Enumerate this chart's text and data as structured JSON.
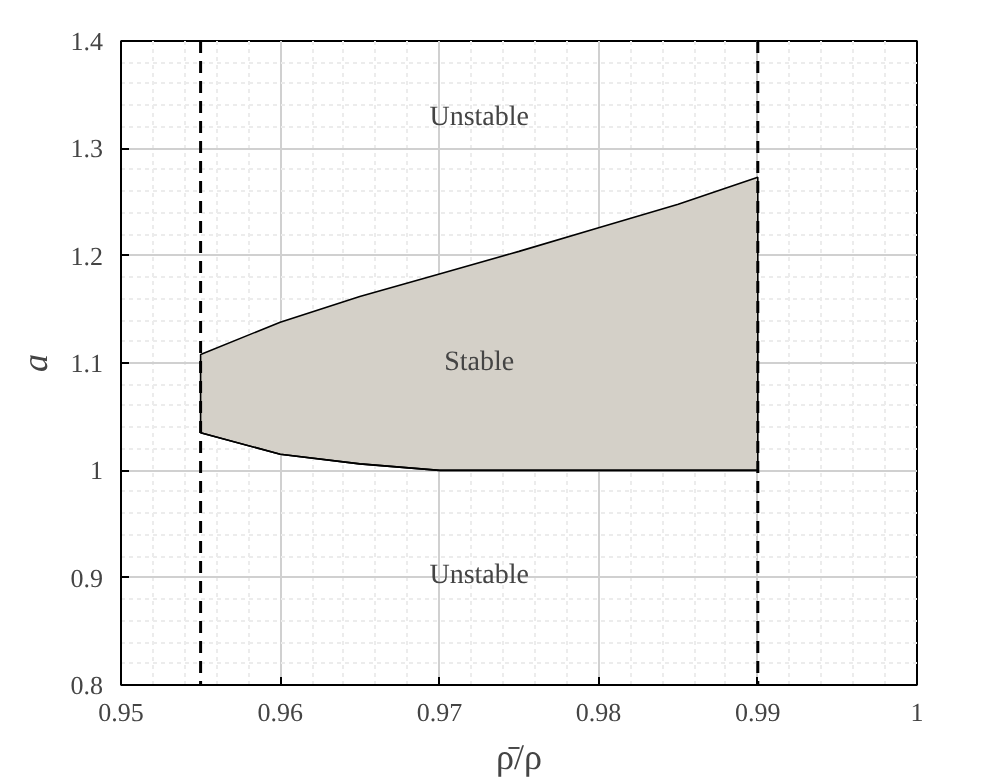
{
  "chart_data": {
    "type": "area",
    "xlabel": "ρ̄/ρ",
    "ylabel": "a",
    "x": [
      0.955,
      0.96,
      0.965,
      0.97,
      0.975,
      0.98,
      0.985,
      0.99
    ],
    "series": [
      {
        "color": "#d4d0c8",
        "values": [
          1.108,
          1.138,
          1.162,
          1.183,
          1.204,
          1.226,
          1.248,
          1.273
        ]
      },
      {
        "type": "line",
        "color": "#000000",
        "values": [
          1.035,
          1.015,
          1.006,
          1.0,
          1.0,
          1.0,
          1.0,
          1.0
        ]
      }
    ],
    "xlim": [
      0.95,
      1
    ],
    "ylim": [
      0.8,
      1.4
    ],
    "xticks": [
      0.95,
      0.96,
      0.97,
      0.98,
      0.99,
      1
    ],
    "yticks": [
      0.8,
      0.9,
      1,
      1.1,
      1.2,
      1.3,
      1.4
    ],
    "ref_lines": [
      {
        "axis": "x",
        "value": 0.955,
        "color": "#000000",
        "line_style": "dashed"
      },
      {
        "axis": "x",
        "value": 0.99,
        "color": "#000000",
        "line_style": "dashed"
      }
    ],
    "annotations": [
      "Unstable",
      "Stable",
      "Unstable"
    ],
    "grid": true
  }
}
